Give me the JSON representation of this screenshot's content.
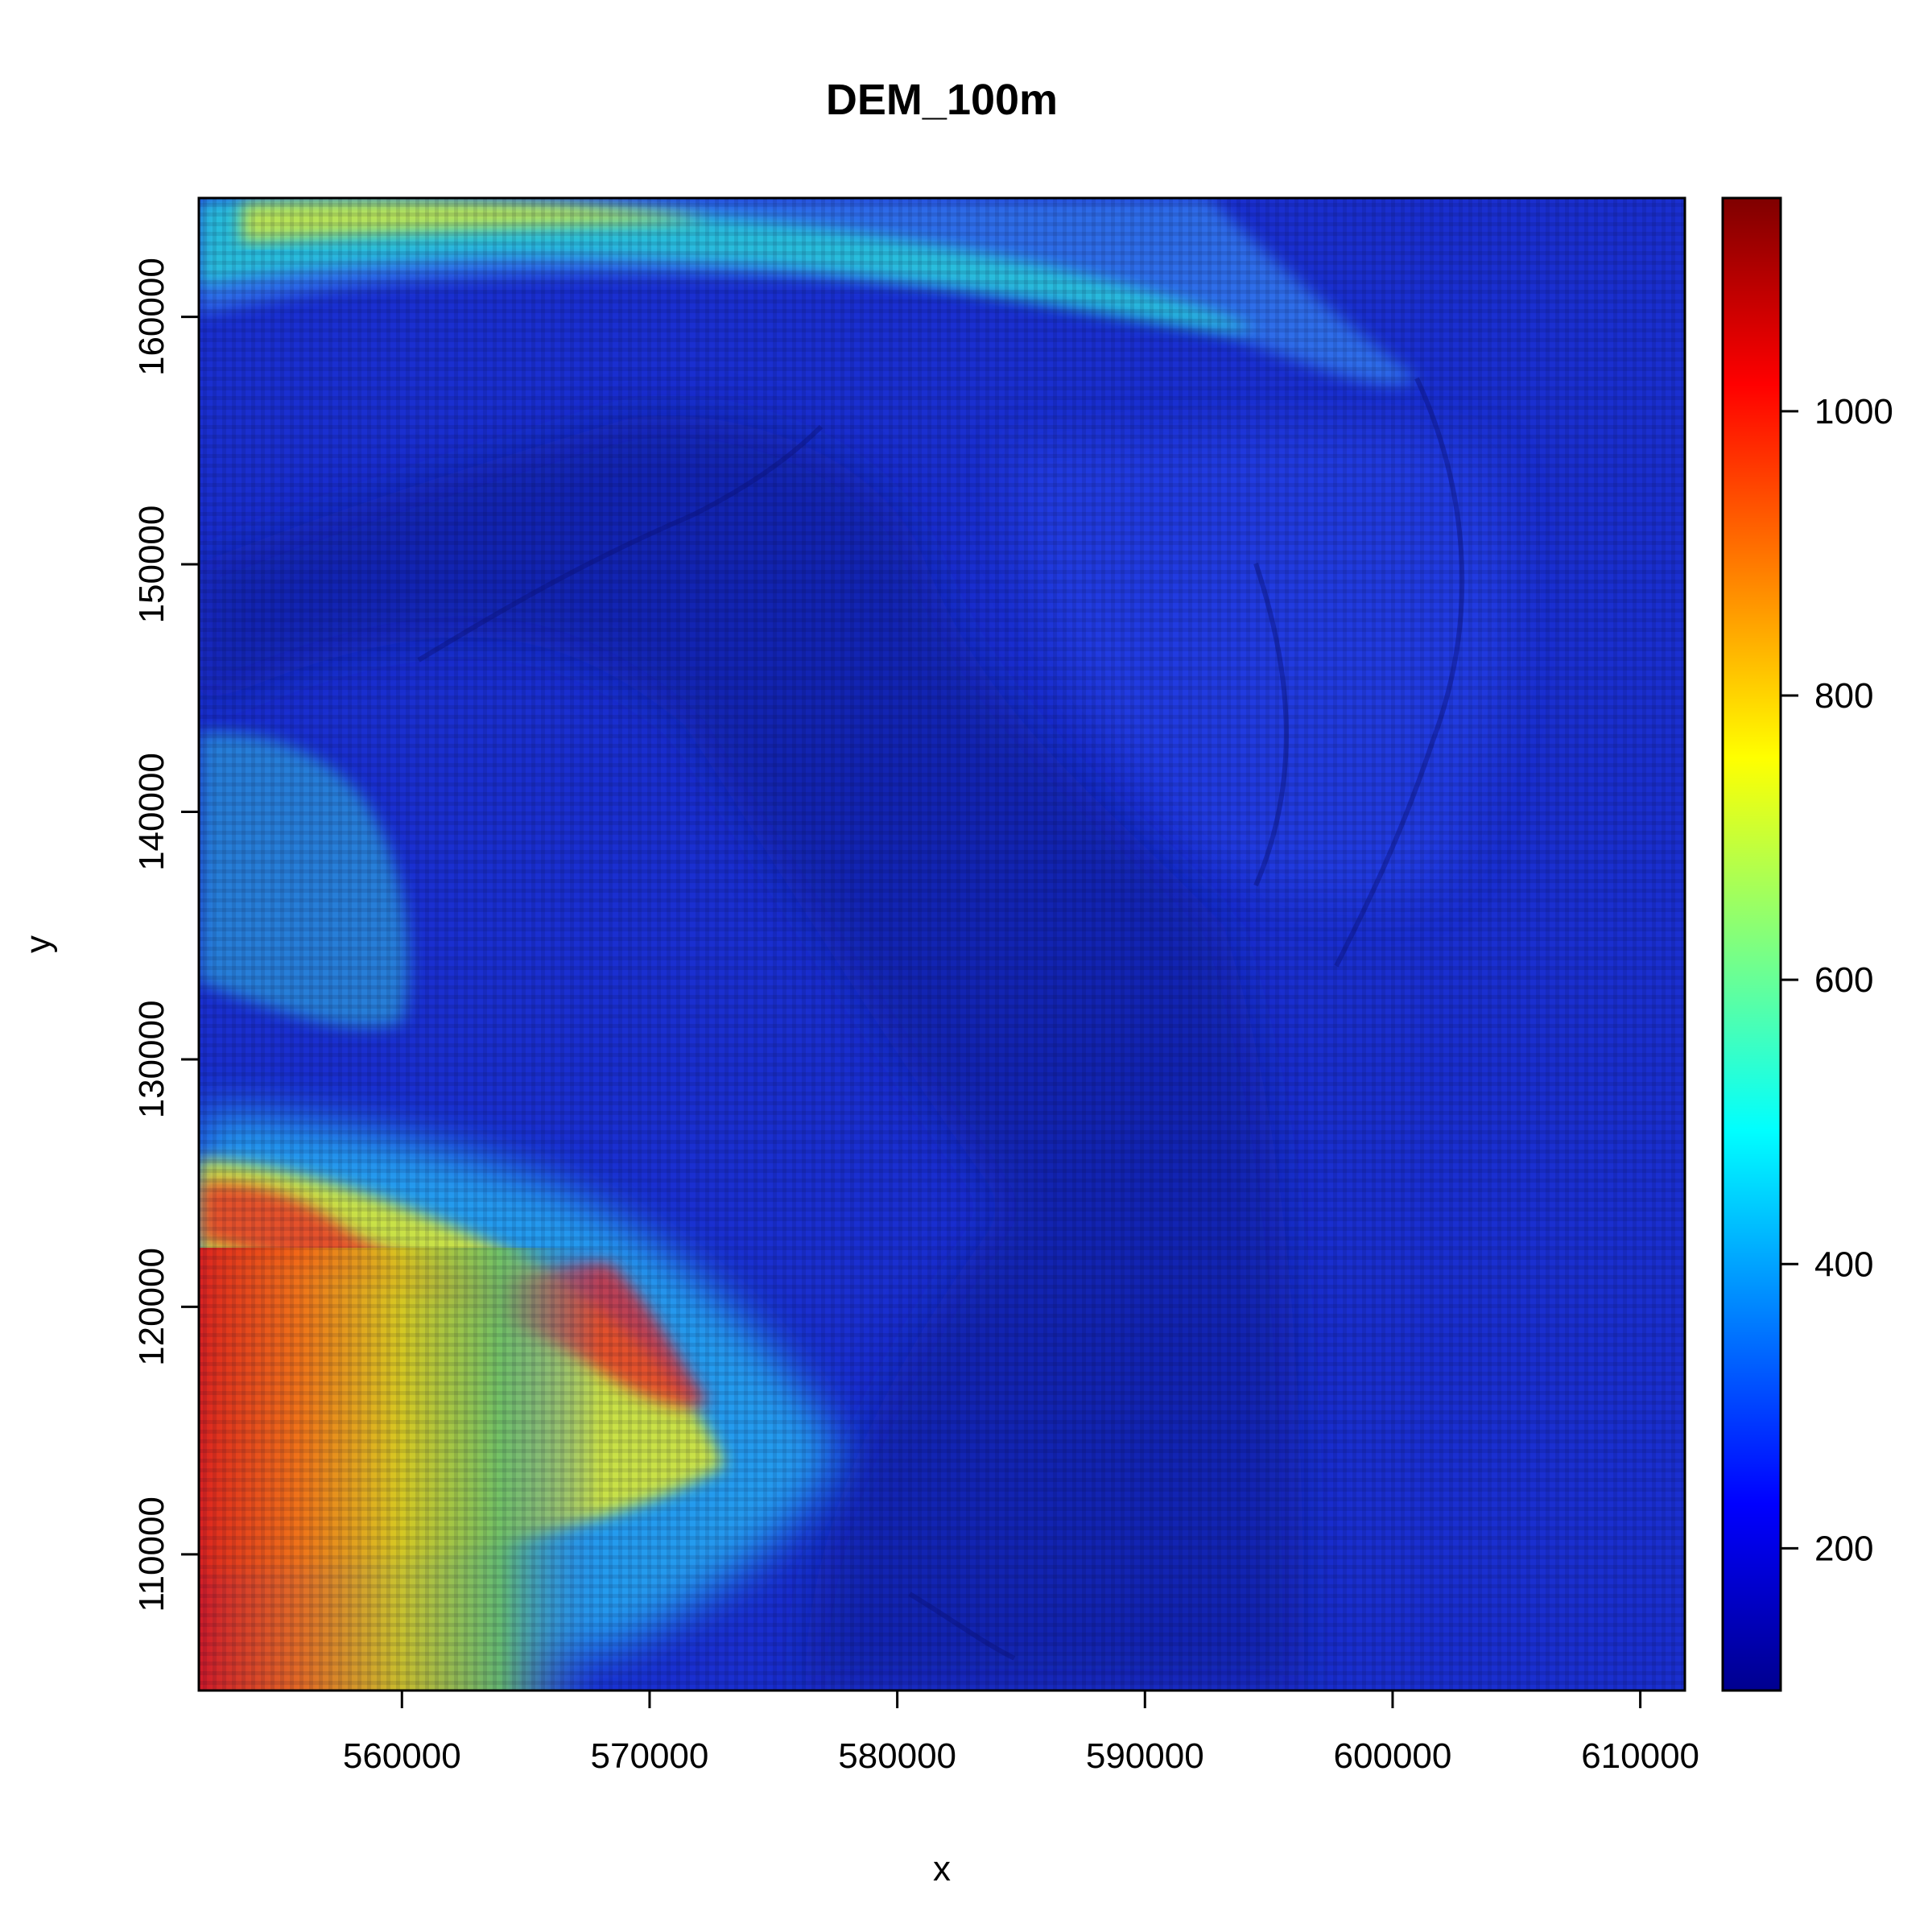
{
  "chart_data": {
    "type": "heatmap",
    "title": "DEM_100m",
    "xlabel": "x",
    "ylabel": "y",
    "xlim": [
      551800,
      611800
    ],
    "ylim": [
      104500,
      164800
    ],
    "x_ticks": [
      {
        "value": 560000,
        "label": "560000"
      },
      {
        "value": 570000,
        "label": "570000"
      },
      {
        "value": 580000,
        "label": "580000"
      },
      {
        "value": 590000,
        "label": "590000"
      },
      {
        "value": 600000,
        "label": "600000"
      },
      {
        "value": 610000,
        "label": "610000"
      }
    ],
    "y_ticks": [
      {
        "value": 110000,
        "label": "110000"
      },
      {
        "value": 120000,
        "label": "120000"
      },
      {
        "value": 130000,
        "label": "130000"
      },
      {
        "value": 140000,
        "label": "140000"
      },
      {
        "value": 150000,
        "label": "150000"
      },
      {
        "value": 160000,
        "label": "160000"
      }
    ],
    "colorbar": {
      "range": [
        100,
        1150
      ],
      "ticks": [
        {
          "value": 200,
          "label": "200"
        },
        {
          "value": 400,
          "label": "400"
        },
        {
          "value": 600,
          "label": "600"
        },
        {
          "value": 800,
          "label": "800"
        },
        {
          "value": 1000,
          "label": "1000"
        }
      ],
      "palette": [
        "#00008f",
        "#0000ff",
        "#007fff",
        "#00ffff",
        "#7fff7f",
        "#ffff00",
        "#ff7f00",
        "#ff0000",
        "#7f0000"
      ]
    },
    "background_elevation": 240,
    "grid": false,
    "legend": "right colorbar"
  }
}
